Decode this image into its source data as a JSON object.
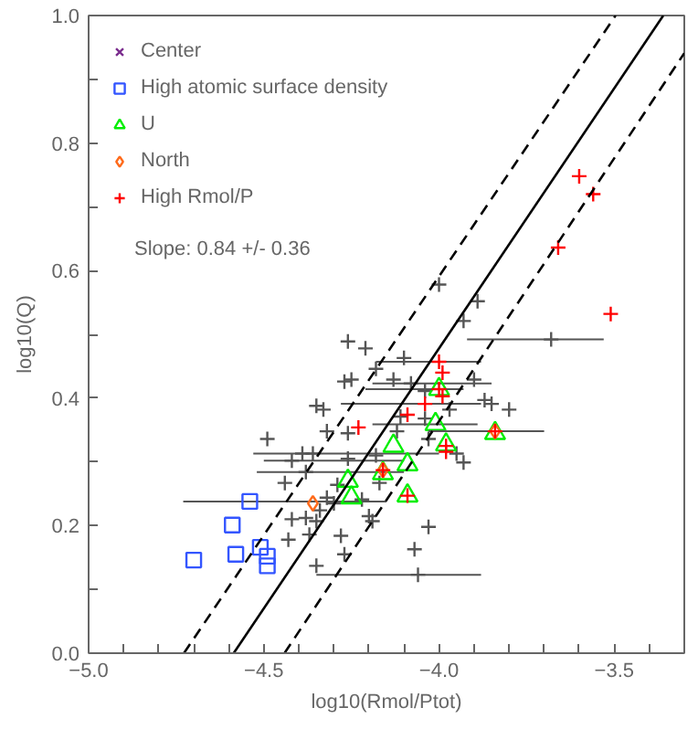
{
  "chart_data": {
    "type": "scatter",
    "xlabel": "log10(Rmol/Ptot)",
    "ylabel": "log10(Q)",
    "xlim": [
      -5.0,
      -3.3
    ],
    "ylim": [
      0.0,
      1.0
    ],
    "xticks": [
      {
        "value": -5.0,
        "label": "−5.0"
      },
      {
        "value": -4.9,
        "label": null
      },
      {
        "value": -4.8,
        "label": null
      },
      {
        "value": -4.7,
        "label": null
      },
      {
        "value": -4.6,
        "label": null
      },
      {
        "value": -4.5,
        "label": "−4.5"
      },
      {
        "value": -4.4,
        "label": null
      },
      {
        "value": -4.3,
        "label": null
      },
      {
        "value": -4.2,
        "label": null
      },
      {
        "value": -4.1,
        "label": null
      },
      {
        "value": -4.0,
        "label": "−4.0"
      },
      {
        "value": -3.9,
        "label": null
      },
      {
        "value": -3.8,
        "label": null
      },
      {
        "value": -3.7,
        "label": null
      },
      {
        "value": -3.6,
        "label": null
      },
      {
        "value": -3.5,
        "label": "−3.5"
      },
      {
        "value": -3.4,
        "label": null
      }
    ],
    "yticks": [
      {
        "value": 0.0,
        "label": "0.0"
      },
      {
        "value": 0.1,
        "label": null
      },
      {
        "value": 0.2,
        "label": "0.2"
      },
      {
        "value": 0.3,
        "label": null
      },
      {
        "value": 0.4,
        "label": "0.4"
      },
      {
        "value": 0.5,
        "label": null
      },
      {
        "value": 0.6,
        "label": "0.6"
      },
      {
        "value": 0.7,
        "label": null
      },
      {
        "value": 0.8,
        "label": "0.8"
      },
      {
        "value": 0.9,
        "label": null
      },
      {
        "value": 1.0,
        "label": "1.0"
      }
    ],
    "grid": false,
    "legend": "top left",
    "annotations": [
      "Slope: 0.84 +/- 0.36"
    ],
    "series": [
      {
        "marker": "cross",
        "color": "#555555",
        "x": [
          -4.26,
          -4.21,
          -4.27,
          -4.25,
          -4.18,
          -4.35,
          -4.33,
          -4.49,
          -4.32,
          -4.26,
          -4.39,
          -4.36,
          -4.42,
          -4.38,
          -4.44,
          -4.26,
          -4.29,
          -4.0,
          -3.89,
          -3.93,
          -3.68,
          -4.1,
          -4.13,
          -4.08,
          -3.9,
          -4.04,
          -3.87,
          -3.85,
          -3.8,
          -3.97,
          -4.11,
          -4.04,
          -4.12,
          -4.03,
          -3.95,
          -3.93,
          -4.18,
          -4.42,
          -4.38,
          -4.34,
          -4.3,
          -4.32,
          -4.43,
          -4.37,
          -4.35,
          -4.28,
          -4.27,
          -4.35,
          -4.22,
          -4.2,
          -4.19,
          -4.03,
          -4.07,
          -4.06,
          -4.17
        ],
        "values": [
          0.489,
          0.478,
          0.426,
          0.429,
          0.446,
          0.388,
          0.382,
          0.336,
          0.348,
          0.345,
          0.313,
          0.313,
          0.302,
          0.284,
          0.267,
          0.305,
          0.264,
          0.578,
          0.552,
          0.521,
          0.492,
          0.463,
          0.429,
          0.423,
          0.429,
          0.411,
          0.397,
          0.391,
          0.382,
          0.382,
          0.371,
          0.368,
          0.348,
          0.336,
          0.313,
          0.299,
          0.31,
          0.21,
          0.212,
          0.224,
          0.235,
          0.244,
          0.178,
          0.186,
          0.207,
          0.184,
          0.155,
          0.137,
          0.241,
          0.215,
          0.207,
          0.198,
          0.163,
          0.123,
          0.267
        ],
        "xerrors": [
          null,
          null,
          null,
          null,
          null,
          null,
          null,
          null,
          null,
          null,
          null,
          [
            -4.53,
            -4.0
          ],
          [
            -4.5,
            -4.1
          ],
          [
            -4.52,
            -4.1
          ],
          null,
          null,
          null,
          null,
          null,
          null,
          [
            -3.92,
            -3.53
          ],
          null,
          null,
          [
            -4.19,
            -3.85
          ],
          null,
          null,
          null,
          null,
          null,
          null,
          null,
          null,
          null,
          null,
          null,
          null,
          null,
          null,
          null,
          null,
          null,
          null,
          null,
          null,
          null,
          null,
          null,
          null,
          null,
          null,
          null,
          null,
          null,
          [
            -4.35,
            -3.88
          ],
          null
        ]
      },
      {
        "name": "Center",
        "marker": "x",
        "color": "#7b2d8e"
      },
      {
        "name": "High atomic surface density",
        "marker": "square",
        "color": "#3355ff",
        "x": [
          -4.54,
          -4.59,
          -4.7,
          -4.58,
          -4.51,
          -4.49,
          -4.49
        ],
        "values": [
          0.238,
          0.201,
          0.146,
          0.155,
          0.166,
          0.152,
          0.137
        ],
        "xerrors": [
          [
            -4.73,
            -4.15
          ],
          null,
          null,
          null,
          null,
          null,
          null
        ]
      },
      {
        "name": "U",
        "marker": "triangle",
        "color": "#00ee00",
        "x": [
          -4.0,
          -4.01,
          -3.84,
          -4.13,
          -4.09,
          -3.98,
          -4.16,
          -4.26,
          -4.25,
          -4.09
        ],
        "values": [
          0.414,
          0.359,
          0.345,
          0.325,
          0.296,
          0.327,
          0.282,
          0.27,
          0.244,
          0.247
        ],
        "xerrors": [
          null,
          [
            -4.19,
            -3.89
          ],
          null,
          null,
          null,
          null,
          null,
          null,
          null,
          null
        ]
      },
      {
        "name": "North",
        "marker": "diamond",
        "color": "#ff6a1a",
        "x": [
          -4.16,
          -4.36,
          -3.84
        ],
        "values": [
          0.287,
          0.235,
          0.348
        ]
      },
      {
        "name": "High Rmol/P",
        "marker": "cross",
        "color": "#ff0000",
        "x": [
          -3.6,
          -3.56,
          -3.66,
          -3.51,
          -4.0,
          -3.99,
          -4.0,
          -3.99,
          -4.04,
          -4.09,
          -3.84,
          -3.98,
          -3.98,
          -4.16,
          -4.23,
          -4.09
        ],
        "values": [
          0.748,
          0.72,
          0.636,
          0.532,
          0.457,
          0.44,
          0.414,
          0.403,
          0.391,
          0.374,
          0.348,
          0.325,
          0.316,
          0.287,
          0.354,
          0.247
        ],
        "xerrors": [
          null,
          null,
          null,
          null,
          [
            -4.18,
            -3.88
          ],
          null,
          [
            -4.21,
            -3.93
          ],
          null,
          [
            -4.28,
            -3.88
          ],
          null,
          [
            -4.03,
            -3.7
          ],
          null,
          null,
          null,
          null,
          null
        ]
      },
      {
        "type": "line",
        "line_style": "solid",
        "color": "#000000",
        "x": [
          -4.586,
          -3.36
        ],
        "values": [
          0.0,
          1.0
        ]
      },
      {
        "type": "line",
        "line_style": "dashed",
        "color": "#000000",
        "x": [
          -4.728,
          -3.496
        ],
        "values": [
          0.0,
          1.0
        ]
      },
      {
        "type": "line",
        "line_style": "dashed",
        "color": "#000000",
        "x": [
          -4.441,
          -3.3
        ],
        "values": [
          0.0,
          0.941
        ]
      }
    ]
  }
}
